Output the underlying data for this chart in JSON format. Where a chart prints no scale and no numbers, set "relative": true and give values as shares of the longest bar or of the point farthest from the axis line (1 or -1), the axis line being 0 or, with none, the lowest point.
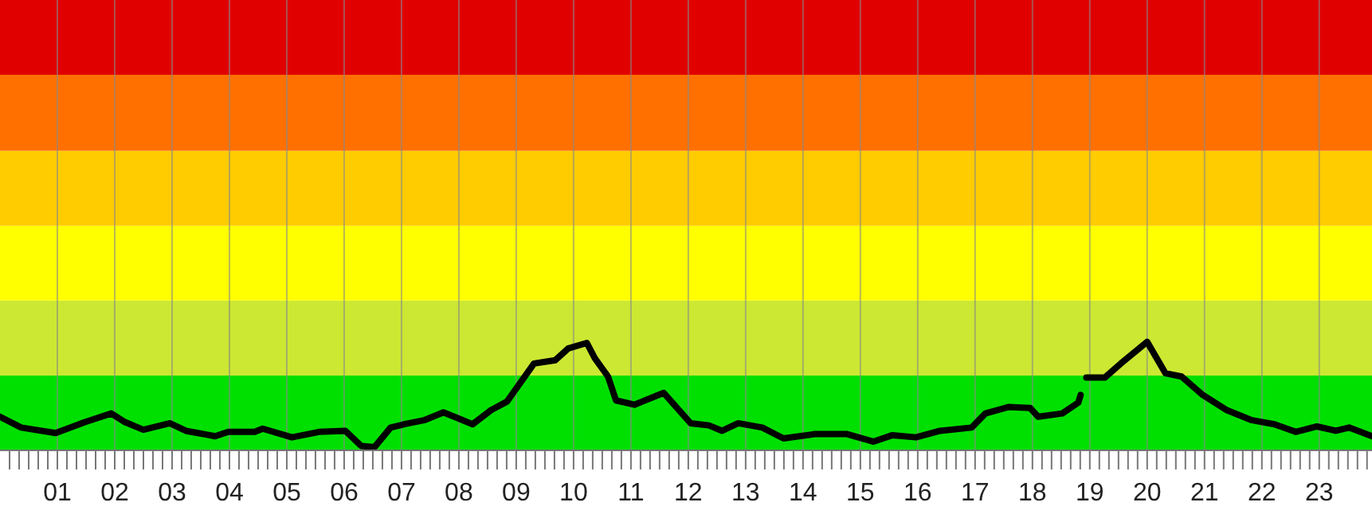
{
  "chart_data": {
    "type": "line",
    "relative": true,
    "xlim": [
      0,
      23.92
    ],
    "xticks": [
      {
        "value": 1,
        "label": "01"
      },
      {
        "value": 2,
        "label": "02"
      },
      {
        "value": 3,
        "label": "03"
      },
      {
        "value": 4,
        "label": "04"
      },
      {
        "value": 5,
        "label": "05"
      },
      {
        "value": 6,
        "label": "06"
      },
      {
        "value": 7,
        "label": "07"
      },
      {
        "value": 8,
        "label": "08"
      },
      {
        "value": 9,
        "label": "09"
      },
      {
        "value": 10,
        "label": "10"
      },
      {
        "value": 11,
        "label": "11"
      },
      {
        "value": 12,
        "label": "12"
      },
      {
        "value": 13,
        "label": "13"
      },
      {
        "value": 14,
        "label": "14"
      },
      {
        "value": 15,
        "label": "15"
      },
      {
        "value": 16,
        "label": "16"
      },
      {
        "value": 17,
        "label": "17"
      },
      {
        "value": 18,
        "label": "18"
      },
      {
        "value": 19,
        "label": "19"
      },
      {
        "value": 20,
        "label": "20"
      },
      {
        "value": 21,
        "label": "21"
      },
      {
        "value": 22,
        "label": "22"
      },
      {
        "value": 23,
        "label": "23"
      },
      {
        "value": 0.1667,
        "label": null
      },
      {
        "value": 0.3333,
        "label": null
      },
      {
        "value": 0.5,
        "label": null
      },
      {
        "value": 0.6667,
        "label": null
      },
      {
        "value": 0.8333,
        "label": null
      },
      {
        "value": 1.1667,
        "label": null
      },
      {
        "value": 1.3333,
        "label": null
      },
      {
        "value": 1.5,
        "label": null
      },
      {
        "value": 1.6667,
        "label": null
      },
      {
        "value": 1.8333,
        "label": null
      },
      {
        "value": 2.1667,
        "label": null
      },
      {
        "value": 2.3333,
        "label": null
      },
      {
        "value": 2.5,
        "label": null
      },
      {
        "value": 2.6667,
        "label": null
      },
      {
        "value": 2.8333,
        "label": null
      },
      {
        "value": 3.1667,
        "label": null
      },
      {
        "value": 3.3333,
        "label": null
      },
      {
        "value": 3.5,
        "label": null
      },
      {
        "value": 3.6667,
        "label": null
      },
      {
        "value": 3.8333,
        "label": null
      },
      {
        "value": 4.1667,
        "label": null
      },
      {
        "value": 4.3333,
        "label": null
      },
      {
        "value": 4.5,
        "label": null
      },
      {
        "value": 4.6667,
        "label": null
      },
      {
        "value": 4.8333,
        "label": null
      },
      {
        "value": 5.1667,
        "label": null
      },
      {
        "value": 5.3333,
        "label": null
      },
      {
        "value": 5.5,
        "label": null
      },
      {
        "value": 5.6667,
        "label": null
      },
      {
        "value": 5.8333,
        "label": null
      },
      {
        "value": 6.1667,
        "label": null
      },
      {
        "value": 6.3333,
        "label": null
      },
      {
        "value": 6.5,
        "label": null
      },
      {
        "value": 6.6667,
        "label": null
      },
      {
        "value": 6.8333,
        "label": null
      },
      {
        "value": 7.1667,
        "label": null
      },
      {
        "value": 7.3333,
        "label": null
      },
      {
        "value": 7.5,
        "label": null
      },
      {
        "value": 7.6667,
        "label": null
      },
      {
        "value": 7.8333,
        "label": null
      },
      {
        "value": 8.1667,
        "label": null
      },
      {
        "value": 8.3333,
        "label": null
      },
      {
        "value": 8.5,
        "label": null
      },
      {
        "value": 8.6667,
        "label": null
      },
      {
        "value": 8.8333,
        "label": null
      },
      {
        "value": 9.1667,
        "label": null
      },
      {
        "value": 9.3333,
        "label": null
      },
      {
        "value": 9.5,
        "label": null
      },
      {
        "value": 9.6667,
        "label": null
      },
      {
        "value": 9.8333,
        "label": null
      },
      {
        "value": 10.1667,
        "label": null
      },
      {
        "value": 10.3333,
        "label": null
      },
      {
        "value": 10.5,
        "label": null
      },
      {
        "value": 10.6667,
        "label": null
      },
      {
        "value": 10.8333,
        "label": null
      },
      {
        "value": 11.1667,
        "label": null
      },
      {
        "value": 11.3333,
        "label": null
      },
      {
        "value": 11.5,
        "label": null
      },
      {
        "value": 11.6667,
        "label": null
      },
      {
        "value": 11.8333,
        "label": null
      },
      {
        "value": 12.1667,
        "label": null
      },
      {
        "value": 12.3333,
        "label": null
      },
      {
        "value": 12.5,
        "label": null
      },
      {
        "value": 12.6667,
        "label": null
      },
      {
        "value": 12.8333,
        "label": null
      },
      {
        "value": 13.1667,
        "label": null
      },
      {
        "value": 13.3333,
        "label": null
      },
      {
        "value": 13.5,
        "label": null
      },
      {
        "value": 13.6667,
        "label": null
      },
      {
        "value": 13.8333,
        "label": null
      },
      {
        "value": 14.1667,
        "label": null
      },
      {
        "value": 14.3333,
        "label": null
      },
      {
        "value": 14.5,
        "label": null
      },
      {
        "value": 14.6667,
        "label": null
      },
      {
        "value": 14.8333,
        "label": null
      },
      {
        "value": 15.1667,
        "label": null
      },
      {
        "value": 15.3333,
        "label": null
      },
      {
        "value": 15.5,
        "label": null
      },
      {
        "value": 15.6667,
        "label": null
      },
      {
        "value": 15.8333,
        "label": null
      },
      {
        "value": 16.1667,
        "label": null
      },
      {
        "value": 16.3333,
        "label": null
      },
      {
        "value": 16.5,
        "label": null
      },
      {
        "value": 16.6667,
        "label": null
      },
      {
        "value": 16.8333,
        "label": null
      },
      {
        "value": 17.1667,
        "label": null
      },
      {
        "value": 17.3333,
        "label": null
      },
      {
        "value": 17.5,
        "label": null
      },
      {
        "value": 17.6667,
        "label": null
      },
      {
        "value": 17.8333,
        "label": null
      },
      {
        "value": 18.1667,
        "label": null
      },
      {
        "value": 18.3333,
        "label": null
      },
      {
        "value": 18.5,
        "label": null
      },
      {
        "value": 18.6667,
        "label": null
      },
      {
        "value": 18.8333,
        "label": null
      },
      {
        "value": 19.1667,
        "label": null
      },
      {
        "value": 19.3333,
        "label": null
      },
      {
        "value": 19.5,
        "label": null
      },
      {
        "value": 19.6667,
        "label": null
      },
      {
        "value": 19.8333,
        "label": null
      },
      {
        "value": 20.1667,
        "label": null
      },
      {
        "value": 20.3333,
        "label": null
      },
      {
        "value": 20.5,
        "label": null
      },
      {
        "value": 20.6667,
        "label": null
      },
      {
        "value": 20.8333,
        "label": null
      },
      {
        "value": 21.1667,
        "label": null
      },
      {
        "value": 21.3333,
        "label": null
      },
      {
        "value": 21.5,
        "label": null
      },
      {
        "value": 21.6667,
        "label": null
      },
      {
        "value": 21.8333,
        "label": null
      },
      {
        "value": 22.1667,
        "label": null
      },
      {
        "value": 22.3333,
        "label": null
      },
      {
        "value": 22.5,
        "label": null
      },
      {
        "value": 22.6667,
        "label": null
      },
      {
        "value": 22.8333,
        "label": null
      },
      {
        "value": 23.1667,
        "label": null
      },
      {
        "value": 23.3333,
        "label": null
      },
      {
        "value": 23.5,
        "label": null
      },
      {
        "value": 23.6667,
        "label": null
      },
      {
        "value": 23.8333,
        "label": null
      }
    ],
    "grid": "x",
    "marker": "none",
    "line_style": "solid",
    "bands": [
      {
        "axis": "y",
        "from": 0,
        "to": 0.69,
        "color": "#00e000"
      },
      {
        "axis": "y",
        "from": 0.69,
        "to": 1.38,
        "color": "#cce833"
      },
      {
        "axis": "y",
        "from": 1.38,
        "to": 2.07,
        "color": "#ffff00"
      },
      {
        "axis": "y",
        "from": 2.07,
        "to": 2.76,
        "color": "#ffcc00"
      },
      {
        "axis": "y",
        "from": 2.76,
        "to": 3.46,
        "color": "#ff7000"
      },
      {
        "axis": "y",
        "from": 3.46,
        "to": 4.15,
        "color": "#e00000"
      }
    ],
    "series": [
      {
        "color": "#000000",
        "x": [
          0,
          0.37,
          0.97,
          1.48,
          1.94,
          2.18,
          2.5,
          2.96,
          3.24,
          3.75,
          3.98,
          4.44,
          4.58,
          5.09,
          5.56,
          6.02,
          6.3,
          6.53,
          6.81,
          7.04,
          7.41,
          7.73,
          7.92,
          8.24,
          8.56,
          8.84,
          9.31,
          9.68,
          9.91,
          10.23,
          10.37,
          10.6,
          10.74,
          11.06,
          11.57,
          12.04,
          12.36,
          12.59,
          12.87,
          13.29,
          13.66,
          14.21,
          14.77,
          15.23,
          15.56,
          15.97,
          16.39,
          16.94,
          17.18,
          17.59,
          17.96,
          18.1,
          18.52,
          18.8,
          18.84,
          18.89,
          18.94,
          19.26,
          19.54,
          20,
          20.32,
          20.6,
          20.97,
          21.39,
          21.81,
          22.22,
          22.59,
          22.96,
          23.29,
          23.52,
          23.92
        ],
        "values": [
          0.31,
          0.21,
          0.16,
          0.26,
          0.34,
          0.26,
          0.19,
          0.25,
          0.18,
          0.13,
          0.17,
          0.17,
          0.2,
          0.12,
          0.17,
          0.18,
          0.04,
          0.03,
          0.21,
          0.24,
          0.28,
          0.35,
          0.31,
          0.24,
          0.37,
          0.45,
          0.8,
          0.83,
          0.94,
          0.99,
          0.85,
          0.68,
          0.46,
          0.42,
          0.53,
          0.25,
          0.23,
          0.18,
          0.25,
          0.21,
          0.11,
          0.15,
          0.15,
          0.08,
          0.14,
          0.12,
          0.18,
          0.21,
          0.34,
          0.4,
          0.39,
          0.31,
          0.34,
          0.44,
          0.51,
          null,
          0.67,
          0.67,
          0.8,
          1,
          0.71,
          0.68,
          0.51,
          0.37,
          0.28,
          0.24,
          0.17,
          0.22,
          0.18,
          0.21,
          0.13
        ]
      }
    ]
  }
}
